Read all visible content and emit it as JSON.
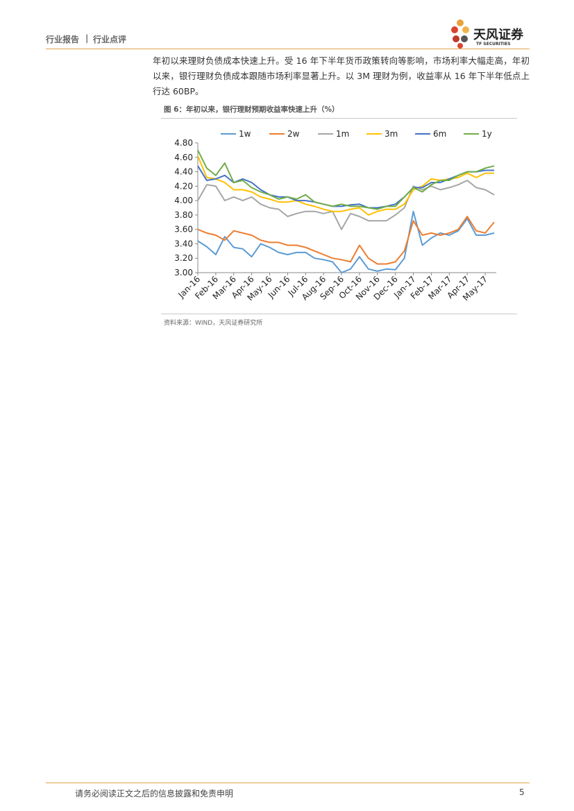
{
  "header": {
    "left": "行业报告",
    "separator": "|",
    "right": "行业点评",
    "logo_text": "天风证券",
    "logo_sub": "TF SECURITIES"
  },
  "paragraph": "年初以来理财负债成本快速上升。受 16 年下半年货币政策转向等影响，市场利率大幅走高，年初以来，银行理财负债成本跟随市场利率显著上升。以 3M 理财为例，收益率从 16 年下半年低点上行达 60BP。",
  "figure": {
    "caption": "图 6：年初以来，银行理财预期收益率快速上升（%）",
    "source": "资料来源：WIND，天风证券研究所"
  },
  "footer": {
    "text": "请务必阅读正文之后的信息披露和免责申明",
    "page": "5"
  },
  "chart_data": {
    "type": "line",
    "categories": [
      "Jan-16",
      null,
      "Feb-16",
      null,
      "Mar-16",
      null,
      "Apr-16",
      null,
      "May-16",
      null,
      "Jun-16",
      null,
      "Jul-16",
      null,
      "Aug-16",
      null,
      "Sep-16",
      null,
      "Oct-16",
      null,
      "Nov-16",
      null,
      "Dec-16",
      null,
      "Jan-17",
      null,
      "Feb-17",
      null,
      "Mar-17",
      null,
      "Apr-17",
      null,
      "May-17",
      null
    ],
    "ylim": [
      3.0,
      4.8
    ],
    "yticks": [
      {
        "value": 3.0,
        "label": "3.00"
      },
      {
        "value": 3.2,
        "label": "3.20"
      },
      {
        "value": 3.4,
        "label": "3.40"
      },
      {
        "value": 3.6,
        "label": "3.60"
      },
      {
        "value": 3.8,
        "label": "3.80"
      },
      {
        "value": 4.0,
        "label": "4.00"
      },
      {
        "value": 4.2,
        "label": "4.20"
      },
      {
        "value": 4.4,
        "label": "4.40"
      },
      {
        "value": 4.6,
        "label": "4.60"
      },
      {
        "value": 4.8,
        "label": "4.80"
      }
    ],
    "grid": false,
    "legend": "top",
    "series": [
      {
        "name": "1w",
        "color": "#5b9bd5",
        "values": [
          3.44,
          3.36,
          3.25,
          3.5,
          3.35,
          3.33,
          3.22,
          3.4,
          3.35,
          3.28,
          3.25,
          3.28,
          3.28,
          3.2,
          3.18,
          3.15,
          3.0,
          3.05,
          3.22,
          3.05,
          3.02,
          3.05,
          3.04,
          3.2,
          3.85,
          3.38,
          3.48,
          3.55,
          3.52,
          3.58,
          3.75,
          3.52,
          3.52,
          3.55
        ]
      },
      {
        "name": "2w",
        "color": "#ed7d31",
        "values": [
          3.6,
          3.55,
          3.52,
          3.45,
          3.58,
          3.55,
          3.52,
          3.45,
          3.42,
          3.42,
          3.38,
          3.38,
          3.35,
          3.3,
          3.25,
          3.2,
          3.18,
          3.15,
          3.38,
          3.2,
          3.12,
          3.12,
          3.15,
          3.3,
          3.72,
          3.52,
          3.55,
          3.52,
          3.55,
          3.6,
          3.78,
          3.58,
          3.55,
          3.7
        ]
      },
      {
        "name": "1m",
        "color": "#a5a5a5",
        "values": [
          4.0,
          4.22,
          4.2,
          4.0,
          4.05,
          4.0,
          4.05,
          3.95,
          3.9,
          3.88,
          3.78,
          3.82,
          3.85,
          3.85,
          3.82,
          3.85,
          3.6,
          3.82,
          3.78,
          3.72,
          3.72,
          3.72,
          3.8,
          3.9,
          4.2,
          4.15,
          4.2,
          4.15,
          4.18,
          4.22,
          4.28,
          4.18,
          4.15,
          4.08
        ]
      },
      {
        "name": "3m",
        "color": "#ffc000",
        "values": [
          4.62,
          4.32,
          4.3,
          4.25,
          4.15,
          4.15,
          4.12,
          4.05,
          4.02,
          3.98,
          3.98,
          4.0,
          3.95,
          3.92,
          3.88,
          3.85,
          3.85,
          3.88,
          3.9,
          3.8,
          3.85,
          3.88,
          3.88,
          3.95,
          4.15,
          4.2,
          4.3,
          4.28,
          4.3,
          4.32,
          4.38,
          4.32,
          4.38,
          4.38
        ]
      },
      {
        "name": "6m",
        "color": "#4472c4",
        "values": [
          4.48,
          4.28,
          4.3,
          4.35,
          4.25,
          4.3,
          4.25,
          4.15,
          4.08,
          4.05,
          4.05,
          4.0,
          4.0,
          3.98,
          3.95,
          3.92,
          3.92,
          3.94,
          3.95,
          3.9,
          3.9,
          3.92,
          3.95,
          4.05,
          4.18,
          4.18,
          4.25,
          4.25,
          4.3,
          4.35,
          4.4,
          4.4,
          4.42,
          4.42
        ]
      },
      {
        "name": "1y",
        "color": "#70ad47",
        "values": [
          4.7,
          4.45,
          4.35,
          4.52,
          4.25,
          4.28,
          4.18,
          4.12,
          4.08,
          4.02,
          4.05,
          4.02,
          4.08,
          3.98,
          3.95,
          3.92,
          3.95,
          3.92,
          3.92,
          3.9,
          3.88,
          3.92,
          3.92,
          4.05,
          4.18,
          4.12,
          4.22,
          4.28,
          4.28,
          4.35,
          4.4,
          4.4,
          4.45,
          4.48
        ]
      }
    ]
  }
}
